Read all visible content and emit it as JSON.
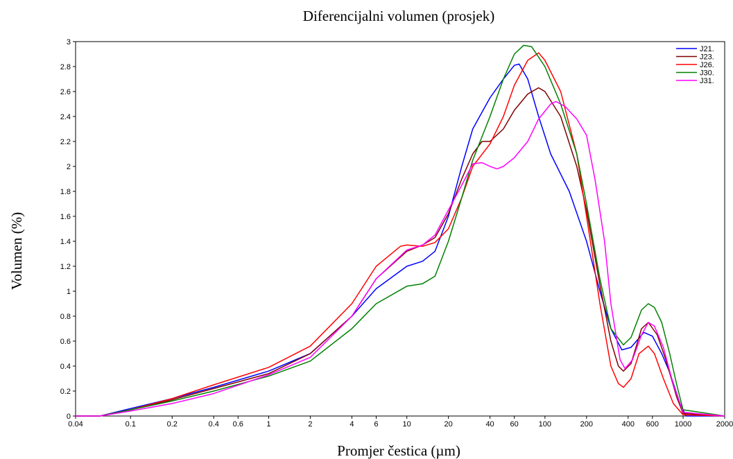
{
  "chart_data": {
    "type": "line",
    "title": "Diferencijalni volumen (prosjek)",
    "xlabel": "Promjer čestica (µm)",
    "ylabel": "Volumen (%)",
    "x_scale": "log",
    "xlim": [
      0.04,
      2000
    ],
    "ylim": [
      0,
      3
    ],
    "x_ticks": [
      0.04,
      0.1,
      0.2,
      0.4,
      0.6,
      1,
      2,
      4,
      6,
      10,
      20,
      40,
      60,
      100,
      200,
      400,
      600,
      1000,
      2000
    ],
    "x_tick_labels": [
      "0.04",
      "0.1",
      "0.2",
      "0.4",
      "0.6",
      "1",
      "2",
      "4",
      "6",
      "10",
      "20",
      "40",
      "60",
      "100",
      "200",
      "400",
      "600",
      "1000",
      "2000"
    ],
    "y_ticks": [
      0,
      0.2,
      0.4,
      0.6,
      0.8,
      1,
      1.2,
      1.4,
      1.6,
      1.8,
      2,
      2.2,
      2.4,
      2.6,
      2.8,
      3
    ],
    "y_tick_labels": [
      "0",
      "0.2",
      "0.4",
      "0.6",
      "0.8",
      "1",
      "1.2",
      "1.4",
      "1.6",
      "1.8",
      "2",
      "2.2",
      "2.4",
      "2.6",
      "2.8",
      "3"
    ],
    "legend_position": "top-right",
    "grid": false,
    "series": [
      {
        "name": "J21.",
        "color": "#0000ff",
        "points": [
          [
            0.04,
            0
          ],
          [
            0.06,
            0
          ],
          [
            0.1,
            0.06
          ],
          [
            0.2,
            0.14
          ],
          [
            0.4,
            0.23
          ],
          [
            1,
            0.36
          ],
          [
            2,
            0.5
          ],
          [
            4,
            0.8
          ],
          [
            6,
            1.02
          ],
          [
            10,
            1.2
          ],
          [
            13,
            1.24
          ],
          [
            16,
            1.32
          ],
          [
            20,
            1.6
          ],
          [
            25,
            2
          ],
          [
            30,
            2.3
          ],
          [
            40,
            2.55
          ],
          [
            50,
            2.7
          ],
          [
            60,
            2.81
          ],
          [
            65,
            2.82
          ],
          [
            75,
            2.7
          ],
          [
            90,
            2.4
          ],
          [
            110,
            2.1
          ],
          [
            150,
            1.8
          ],
          [
            200,
            1.4
          ],
          [
            250,
            1.0
          ],
          [
            300,
            0.7
          ],
          [
            360,
            0.53
          ],
          [
            420,
            0.55
          ],
          [
            520,
            0.67
          ],
          [
            600,
            0.64
          ],
          [
            700,
            0.5
          ],
          [
            800,
            0.35
          ],
          [
            950,
            0.1
          ],
          [
            1050,
            0
          ],
          [
            2000,
            0
          ]
        ]
      },
      {
        "name": "J23.",
        "color": "#800000",
        "points": [
          [
            0.04,
            0
          ],
          [
            0.06,
            0
          ],
          [
            0.1,
            0.05
          ],
          [
            0.2,
            0.13
          ],
          [
            0.4,
            0.22
          ],
          [
            1,
            0.34
          ],
          [
            2,
            0.5
          ],
          [
            4,
            0.8
          ],
          [
            6,
            1.1
          ],
          [
            10,
            1.32
          ],
          [
            13,
            1.37
          ],
          [
            16,
            1.43
          ],
          [
            20,
            1.62
          ],
          [
            25,
            1.9
          ],
          [
            30,
            2.1
          ],
          [
            35,
            2.2
          ],
          [
            40,
            2.2
          ],
          [
            50,
            2.3
          ],
          [
            60,
            2.45
          ],
          [
            75,
            2.58
          ],
          [
            90,
            2.63
          ],
          [
            100,
            2.6
          ],
          [
            130,
            2.4
          ],
          [
            170,
            2.0
          ],
          [
            200,
            1.65
          ],
          [
            250,
            1.05
          ],
          [
            300,
            0.6
          ],
          [
            340,
            0.4
          ],
          [
            370,
            0.36
          ],
          [
            420,
            0.42
          ],
          [
            500,
            0.7
          ],
          [
            560,
            0.75
          ],
          [
            650,
            0.65
          ],
          [
            750,
            0.45
          ],
          [
            900,
            0.15
          ],
          [
            1000,
            0.02
          ],
          [
            2000,
            0
          ]
        ]
      },
      {
        "name": "J26.",
        "color": "#ff0000",
        "points": [
          [
            0.04,
            0
          ],
          [
            0.06,
            0
          ],
          [
            0.1,
            0.05
          ],
          [
            0.2,
            0.14
          ],
          [
            0.4,
            0.25
          ],
          [
            1,
            0.39
          ],
          [
            2,
            0.56
          ],
          [
            4,
            0.9
          ],
          [
            6,
            1.2
          ],
          [
            9,
            1.36
          ],
          [
            10,
            1.37
          ],
          [
            13,
            1.36
          ],
          [
            16,
            1.39
          ],
          [
            20,
            1.5
          ],
          [
            25,
            1.75
          ],
          [
            30,
            2.0
          ],
          [
            40,
            2.18
          ],
          [
            50,
            2.4
          ],
          [
            60,
            2.65
          ],
          [
            75,
            2.85
          ],
          [
            90,
            2.91
          ],
          [
            100,
            2.85
          ],
          [
            130,
            2.6
          ],
          [
            170,
            2.1
          ],
          [
            200,
            1.6
          ],
          [
            250,
            0.9
          ],
          [
            300,
            0.4
          ],
          [
            340,
            0.26
          ],
          [
            370,
            0.23
          ],
          [
            420,
            0.3
          ],
          [
            480,
            0.5
          ],
          [
            560,
            0.56
          ],
          [
            620,
            0.5
          ],
          [
            720,
            0.3
          ],
          [
            850,
            0.1
          ],
          [
            1000,
            0.01
          ],
          [
            2000,
            0
          ]
        ]
      },
      {
        "name": "J30.",
        "color": "#008000",
        "points": [
          [
            0.04,
            0
          ],
          [
            0.06,
            0
          ],
          [
            0.1,
            0.05
          ],
          [
            0.2,
            0.12
          ],
          [
            0.4,
            0.2
          ],
          [
            1,
            0.32
          ],
          [
            2,
            0.44
          ],
          [
            4,
            0.7
          ],
          [
            6,
            0.9
          ],
          [
            10,
            1.04
          ],
          [
            13,
            1.06
          ],
          [
            16,
            1.12
          ],
          [
            20,
            1.4
          ],
          [
            25,
            1.75
          ],
          [
            30,
            2.05
          ],
          [
            40,
            2.4
          ],
          [
            50,
            2.7
          ],
          [
            60,
            2.9
          ],
          [
            70,
            2.97
          ],
          [
            80,
            2.96
          ],
          [
            100,
            2.8
          ],
          [
            130,
            2.5
          ],
          [
            170,
            2.1
          ],
          [
            200,
            1.7
          ],
          [
            250,
            1.1
          ],
          [
            300,
            0.7
          ],
          [
            370,
            0.57
          ],
          [
            420,
            0.63
          ],
          [
            500,
            0.85
          ],
          [
            560,
            0.9
          ],
          [
            620,
            0.87
          ],
          [
            700,
            0.75
          ],
          [
            800,
            0.5
          ],
          [
            900,
            0.25
          ],
          [
            1000,
            0.05
          ],
          [
            2000,
            0
          ]
        ]
      },
      {
        "name": "J31.",
        "color": "#ff00ff",
        "points": [
          [
            0.04,
            0
          ],
          [
            0.06,
            0
          ],
          [
            0.1,
            0.04
          ],
          [
            0.2,
            0.1
          ],
          [
            0.4,
            0.18
          ],
          [
            1,
            0.33
          ],
          [
            2,
            0.47
          ],
          [
            4,
            0.8
          ],
          [
            6,
            1.1
          ],
          [
            10,
            1.33
          ],
          [
            13,
            1.37
          ],
          [
            16,
            1.45
          ],
          [
            20,
            1.65
          ],
          [
            25,
            1.85
          ],
          [
            30,
            2.02
          ],
          [
            35,
            2.03
          ],
          [
            40,
            2.0
          ],
          [
            45,
            1.98
          ],
          [
            50,
            2.0
          ],
          [
            60,
            2.07
          ],
          [
            75,
            2.2
          ],
          [
            90,
            2.38
          ],
          [
            110,
            2.5
          ],
          [
            120,
            2.52
          ],
          [
            140,
            2.48
          ],
          [
            170,
            2.38
          ],
          [
            200,
            2.25
          ],
          [
            230,
            1.9
          ],
          [
            270,
            1.4
          ],
          [
            300,
            0.9
          ],
          [
            350,
            0.45
          ],
          [
            380,
            0.38
          ],
          [
            430,
            0.45
          ],
          [
            500,
            0.65
          ],
          [
            560,
            0.75
          ],
          [
            620,
            0.72
          ],
          [
            720,
            0.55
          ],
          [
            850,
            0.25
          ],
          [
            1000,
            0.03
          ],
          [
            2000,
            0
          ]
        ]
      }
    ]
  }
}
